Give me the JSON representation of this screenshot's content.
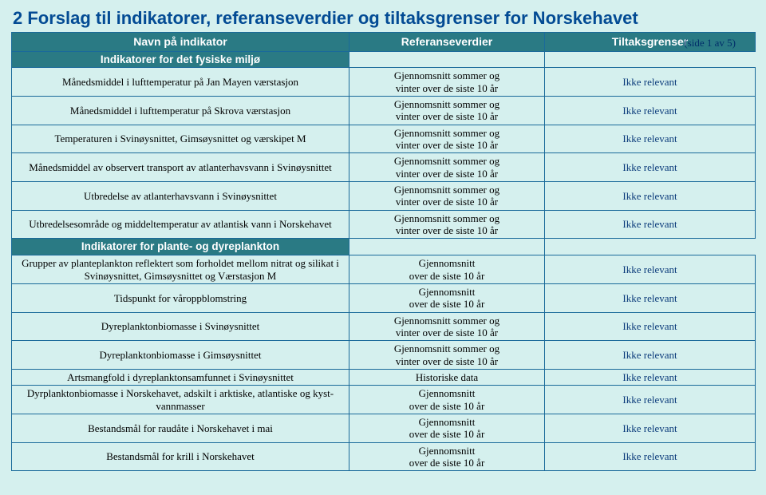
{
  "title": "2  Forslag til indikatorer, referanseverdier og tiltaksgrenser for Norskehavet",
  "pager": "(side 1 av 5)",
  "columns": {
    "c1": "Navn på indikator",
    "c2": "Referanseverdier",
    "c3": "Tiltaksgrenser"
  },
  "groups": [
    {
      "heading": "Indikatorer for det fysiske miljø",
      "rows": [
        {
          "ind": "Månedsmiddel i lufttemperatur på Jan Mayen værstasjon",
          "ref1": "Gjennomsnitt sommer og",
          "ref2": "vinter over de siste 10 år",
          "thr": "Ikke relevant"
        },
        {
          "ind": "Månedsmiddel i lufttemperatur på Skrova værstasjon",
          "ref1": "Gjennomsnitt sommer og",
          "ref2": "vinter over de siste 10 år",
          "thr": "Ikke relevant"
        },
        {
          "ind": "Temperaturen i Svinøysnittet, Gimsøysnittet og værskipet M",
          "ref1": "Gjennomsnitt sommer og",
          "ref2": "vinter over de siste 10 år",
          "thr": "Ikke relevant"
        },
        {
          "ind": "Månedsmiddel av observert transport av atlanterhavsvann i Svinøysnittet",
          "ref1": "Gjennomsnitt sommer og",
          "ref2": "vinter over de siste 10 år",
          "thr": "Ikke relevant"
        },
        {
          "ind": "Utbredelse av atlanterhavsvann i Svinøysnittet",
          "ref1": "Gjennomsnitt sommer og",
          "ref2": "vinter over de siste 10 år",
          "thr": "Ikke relevant"
        },
        {
          "ind": "Utbredelsesområde og middeltemperatur av atlantisk vann i Norskehavet",
          "ref1": "Gjennomsnitt sommer og",
          "ref2": "vinter over de siste 10 år",
          "thr": "Ikke relevant"
        }
      ]
    },
    {
      "heading": "Indikatorer for plante- og dyreplankton",
      "rows": [
        {
          "ind": "Grupper av planteplankton reflektert som forholdet mellom nitrat og silikat i Svinøysnittet, Gimsøysnittet og Værstasjon M",
          "ref1": "Gjennomsnitt",
          "ref2": "over de siste 10 år",
          "thr": "Ikke relevant"
        },
        {
          "ind": "Tidspunkt for våroppblomstring",
          "ref1": "Gjennomsnitt",
          "ref2": "over de siste 10 år",
          "thr": "Ikke relevant"
        },
        {
          "ind": "Dyreplanktonbiomasse i Svinøysnittet",
          "ref1": "Gjennomsnitt sommer og",
          "ref2": "vinter over de siste 10 år",
          "thr": "Ikke relevant"
        },
        {
          "ind": "Dyreplanktonbiomasse i Gimsøysnittet",
          "ref1": "Gjennomsnitt sommer og",
          "ref2": "vinter over de siste 10 år",
          "thr": "Ikke relevant"
        },
        {
          "ind": "Artsmangfold i dyreplanktonsamfunnet i Svinøysnittet",
          "ref1": "Historiske data",
          "ref2": "",
          "thr": "Ikke relevant"
        },
        {
          "ind": "Dyrplanktonbiomasse i Norskehavet, adskilt i arktiske, atlantiske og kyst-vannmasser",
          "ref1": "Gjennomsnitt",
          "ref2": "over de siste 10 år",
          "thr": "Ikke relevant"
        },
        {
          "ind": "Bestandsmål for raudåte i Norskehavet i mai",
          "ref1": "Gjennomsnitt",
          "ref2": "over de siste 10 år",
          "thr": "Ikke relevant"
        },
        {
          "ind": "Bestandsmål for krill i Norskehavet",
          "ref1": "Gjennomsnitt",
          "ref2": "over de siste 10 år",
          "thr": "Ikke relevant"
        }
      ]
    }
  ]
}
